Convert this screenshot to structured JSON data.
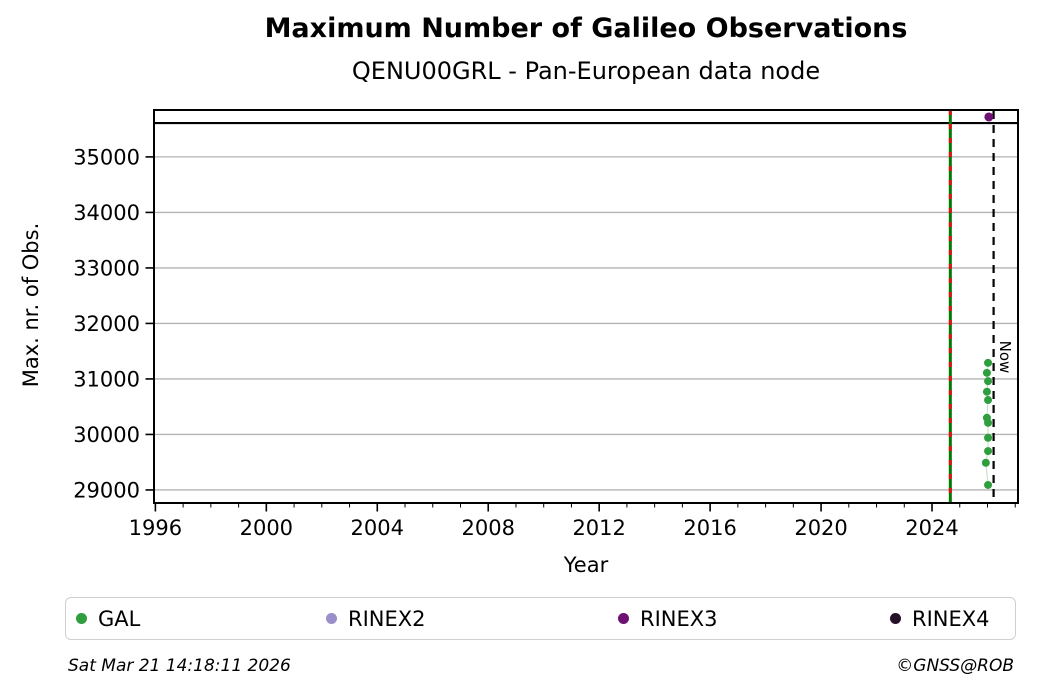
{
  "chart_data": {
    "type": "scatter",
    "title": "Maximum Number of Galileo Observations",
    "subtitle": "QENU00GRL - Pan-European data node",
    "xlabel": "Year",
    "ylabel": "Max. nr. of Obs.",
    "xlim": [
      1995.95,
      2027.1
    ],
    "ylim": [
      28765,
      35845
    ],
    "xticks": [
      1996,
      2000,
      2004,
      2008,
      2012,
      2016,
      2020,
      2024
    ],
    "xticks_minor_step": 1,
    "yticks": [
      29000,
      30000,
      31000,
      32000,
      33000,
      34000,
      35000
    ],
    "grid": "horizontal",
    "grid_color": "#b4b4b4",
    "series": [
      {
        "name": "GAL",
        "color": "#2e9e3e",
        "points": [
          [
            2026.02,
            31290
          ],
          [
            2025.98,
            31110
          ],
          [
            2026.02,
            30960
          ],
          [
            2025.98,
            30770
          ],
          [
            2026.02,
            30620
          ],
          [
            2025.98,
            30300
          ],
          [
            2026.02,
            30210
          ],
          [
            2026.02,
            29940
          ],
          [
            2026.02,
            29700
          ],
          [
            2025.94,
            29490
          ],
          [
            2026.02,
            29090
          ]
        ]
      },
      {
        "name": "RINEX2",
        "color": "#9a8fc9",
        "points": []
      },
      {
        "name": "RINEX3",
        "color": "#6e1173",
        "points": [
          [
            2026.05,
            35720
          ]
        ]
      },
      {
        "name": "RINEX4",
        "color": "#241028",
        "points": []
      }
    ],
    "hline": {
      "y": 35610,
      "color": "#000000"
    },
    "vlines": [
      {
        "x": 2024.66,
        "style": "solid-with-dash-overlay",
        "color": "#007a00",
        "dash_overlay_color": "#dd1111"
      },
      {
        "x": 2026.22,
        "style": "dashed",
        "color": "#000000",
        "label": "Now"
      }
    ],
    "annotations": [
      {
        "text": "Now",
        "x": 2026.22,
        "rotation_deg": 90
      }
    ]
  },
  "legend": {
    "items": [
      {
        "label": "GAL",
        "color": "#2e9e3e"
      },
      {
        "label": "RINEX2",
        "color": "#9a8fc9"
      },
      {
        "label": "RINEX3",
        "color": "#6e1173"
      },
      {
        "label": "RINEX4",
        "color": "#241028"
      }
    ]
  },
  "footer": {
    "left": "Sat Mar 21 14:18:11 2026",
    "right": "©GNSS@ROB"
  }
}
